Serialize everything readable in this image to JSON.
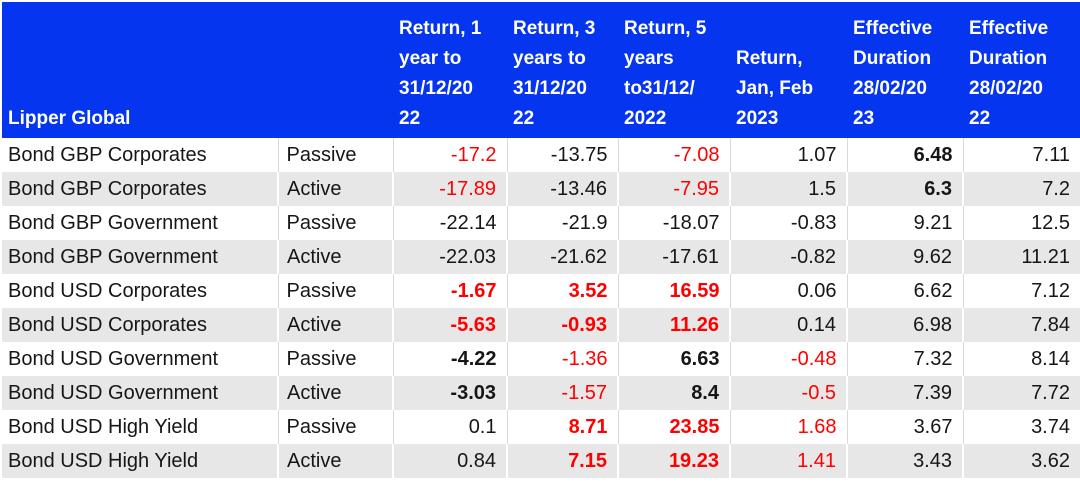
{
  "colors": {
    "header_bg": "#0635ef",
    "header_text": "#ffffff",
    "body_text": "#161616",
    "negative_highlight_red": "#ff0000",
    "band_row_bg": "#e7e7e7",
    "grid_line": "#d9d9d9"
  },
  "chart_data": {
    "type": "table",
    "corner_label": "Lipper Global",
    "columns": [
      {
        "label": "Lipper Global",
        "display": "Lipper Global"
      },
      {
        "label": "",
        "display": ""
      },
      {
        "label": "Return, 1 year to 31/12/2022",
        "display": "Return, 1\nyear to\n31/12/20\n22"
      },
      {
        "label": "Return, 3 years to 31/12/2022",
        "display": "Return, 3\nyears to\n31/12/20\n22"
      },
      {
        "label": "Return, 5 years to31/12/2022",
        "display": "Return, 5\nyears\nto31/12/\n2022"
      },
      {
        "label": "Return, Jan, Feb 2023",
        "display": "Return,\nJan, Feb\n2023"
      },
      {
        "label": "Effective Duration 28/02/2023",
        "display": "Effective\nDuration\n28/02/20\n23"
      },
      {
        "label": "Effective Duration 28/02/2022",
        "display": "Effective\nDuration\n28/02/20\n22"
      }
    ],
    "rows": [
      {
        "name": "Bond GBP Corporates",
        "management": "Passive",
        "cells": [
          {
            "v": -17.2,
            "red": true
          },
          {
            "v": -13.75
          },
          {
            "v": -7.08,
            "red": true
          },
          {
            "v": 1.07
          },
          {
            "v": 6.48,
            "bold": true
          },
          {
            "v": 7.11
          }
        ]
      },
      {
        "name": "Bond GBP Corporates",
        "management": "Active",
        "cells": [
          {
            "v": -17.89,
            "red": true
          },
          {
            "v": -13.46
          },
          {
            "v": -7.95,
            "red": true
          },
          {
            "v": 1.5
          },
          {
            "v": 6.3,
            "bold": true
          },
          {
            "v": 7.2
          }
        ]
      },
      {
        "name": "Bond GBP Government",
        "management": "Passive",
        "cells": [
          {
            "v": -22.14
          },
          {
            "v": -21.9
          },
          {
            "v": -18.07
          },
          {
            "v": -0.83
          },
          {
            "v": 9.21
          },
          {
            "v": 12.5
          }
        ]
      },
      {
        "name": "Bond GBP Government",
        "management": "Active",
        "cells": [
          {
            "v": -22.03
          },
          {
            "v": -21.62
          },
          {
            "v": -17.61
          },
          {
            "v": -0.82
          },
          {
            "v": 9.62
          },
          {
            "v": 11.21
          }
        ]
      },
      {
        "name": "Bond USD Corporates",
        "management": "Passive",
        "cells": [
          {
            "v": -1.67,
            "red": true,
            "bold": true
          },
          {
            "v": 3.52,
            "red": true,
            "bold": true
          },
          {
            "v": 16.59,
            "red": true,
            "bold": true
          },
          {
            "v": 0.06
          },
          {
            "v": 6.62
          },
          {
            "v": 7.12
          }
        ]
      },
      {
        "name": "Bond USD Corporates",
        "management": "Active",
        "cells": [
          {
            "v": -5.63,
            "red": true,
            "bold": true
          },
          {
            "v": -0.93,
            "red": true,
            "bold": true
          },
          {
            "v": 11.26,
            "red": true,
            "bold": true
          },
          {
            "v": 0.14
          },
          {
            "v": 6.98
          },
          {
            "v": 7.84
          }
        ]
      },
      {
        "name": "Bond USD Government",
        "management": "Passive",
        "cells": [
          {
            "v": -4.22,
            "bold": true
          },
          {
            "v": -1.36,
            "red": true
          },
          {
            "v": 6.63,
            "bold": true
          },
          {
            "v": -0.48,
            "red": true
          },
          {
            "v": 7.32
          },
          {
            "v": 8.14
          }
        ]
      },
      {
        "name": "Bond USD Government",
        "management": "Active",
        "cells": [
          {
            "v": -3.03,
            "bold": true
          },
          {
            "v": -1.57,
            "red": true
          },
          {
            "v": 8.4,
            "bold": true
          },
          {
            "v": -0.5,
            "red": true
          },
          {
            "v": 7.39
          },
          {
            "v": 7.72
          }
        ]
      },
      {
        "name": "Bond USD High Yield",
        "management": "Passive",
        "cells": [
          {
            "v": 0.1
          },
          {
            "v": 8.71,
            "red": true,
            "bold": true
          },
          {
            "v": 23.85,
            "red": true,
            "bold": true
          },
          {
            "v": 1.68,
            "red": true
          },
          {
            "v": 3.67
          },
          {
            "v": 3.74
          }
        ]
      },
      {
        "name": "Bond USD High Yield",
        "management": "Active",
        "cells": [
          {
            "v": 0.84
          },
          {
            "v": 7.15,
            "red": true,
            "bold": true
          },
          {
            "v": 19.23,
            "red": true,
            "bold": true
          },
          {
            "v": 1.41,
            "red": true
          },
          {
            "v": 3.43
          },
          {
            "v": 3.62
          }
        ]
      }
    ]
  }
}
